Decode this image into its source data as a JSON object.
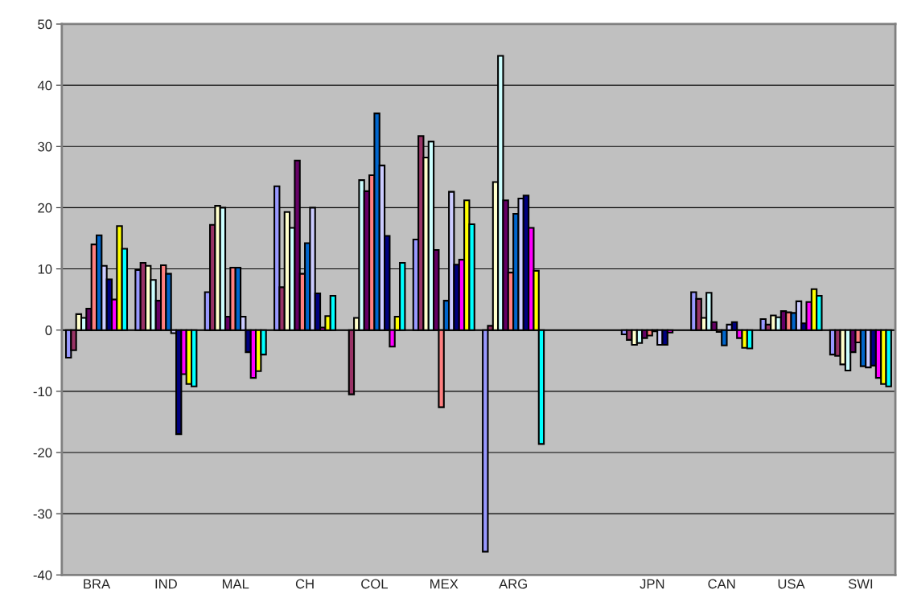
{
  "chart_data": {
    "type": "bar",
    "categories": [
      "BRA",
      "IND",
      "MAL",
      "CH",
      "COL",
      "MEX",
      "ARG",
      null,
      "JPN",
      "CAN",
      "USA",
      "SWI"
    ],
    "series": [
      {
        "color": "#9999ff",
        "values": [
          -4.5,
          9.8,
          6.2,
          23.5,
          null,
          14.8,
          -36.2,
          null,
          -0.7,
          6.2,
          1.8,
          -4.0
        ]
      },
      {
        "color": "#993366",
        "values": [
          -3.3,
          11,
          17.2,
          7,
          -10.5,
          31.7,
          0.7,
          null,
          -1.6,
          5.1,
          0.9,
          -4.2
        ]
      },
      {
        "color": "#ffffcc",
        "values": [
          2.6,
          10.5,
          20.3,
          19.3,
          2,
          28.2,
          24.2,
          null,
          -2.4,
          2.0,
          2.4,
          -5.6
        ]
      },
      {
        "color": "#ccffff",
        "values": [
          2.0,
          8.2,
          20,
          16.7,
          24.5,
          30.8,
          44.8,
          null,
          -2.1,
          6.1,
          2.1,
          -6.6
        ]
      },
      {
        "color": "#660066",
        "values": [
          3.5,
          4.8,
          2.2,
          27.7,
          22.7,
          13.1,
          21.2,
          null,
          -1.3,
          1.3,
          3.1,
          -3.6
        ]
      },
      {
        "color": "#ff8080",
        "values": [
          14,
          10.6,
          10.2,
          9.2,
          25.3,
          -12.6,
          9.4,
          null,
          -0.9,
          -0.3,
          2.9,
          -2.0
        ]
      },
      {
        "color": "#0066cc",
        "values": [
          15.5,
          9.2,
          10.2,
          14.2,
          35.4,
          4.8,
          19,
          null,
          -0.2,
          -2.5,
          2.8,
          -5.9
        ]
      },
      {
        "color": "#ccccff",
        "values": [
          10.5,
          -0.5,
          2.2,
          20,
          26.9,
          22.6,
          21.5,
          null,
          -2.4,
          0.9,
          4.7,
          -6.1
        ]
      },
      {
        "color": "#000080",
        "values": [
          8.3,
          -17,
          -3.6,
          6,
          15.4,
          10.7,
          22,
          null,
          -2.4,
          1.3,
          1.1,
          -5.8
        ]
      },
      {
        "color": "#ff00ff",
        "values": [
          5,
          -7.2,
          -7.8,
          0.4,
          -2.7,
          11.5,
          16.7,
          null,
          -0.4,
          -1.3,
          4.6,
          -7.8
        ]
      },
      {
        "color": "#ffff00",
        "values": [
          17,
          -8.8,
          -6.7,
          2.3,
          2.2,
          21.2,
          9.7,
          null,
          null,
          -2.9,
          6.7,
          -8.8
        ]
      },
      {
        "color": "#00ffff",
        "values": [
          13.3,
          -9.2,
          -4,
          5.6,
          11,
          17.3,
          -18.6,
          null,
          null,
          -3.0,
          5.6,
          -9.2
        ]
      }
    ],
    "ylim": [
      -40,
      50
    ],
    "yticks": [
      -40,
      -30,
      -20,
      -10,
      0,
      10,
      20,
      30,
      40,
      50
    ],
    "grid": "y",
    "legend": false
  }
}
